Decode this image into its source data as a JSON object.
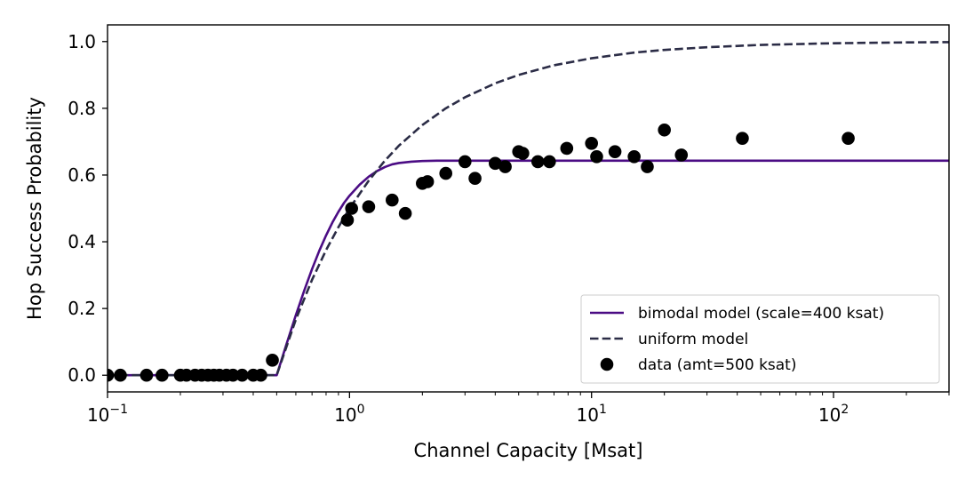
{
  "chart_data": {
    "type": "scatter",
    "title": "",
    "xlabel": "Channel Capacity [Msat]",
    "ylabel": "Hop Success Probability",
    "xscale": "log",
    "xlim": [
      0.1,
      300
    ],
    "ylim": [
      -0.05,
      1.05
    ],
    "x_ticks": [
      {
        "value": 0.1,
        "base": "10",
        "exp": "−1"
      },
      {
        "value": 1,
        "base": "10",
        "exp": "0"
      },
      {
        "value": 10,
        "base": "10",
        "exp": "1"
      },
      {
        "value": 100,
        "base": "10",
        "exp": "2"
      }
    ],
    "y_ticks": [
      {
        "value": 0.0,
        "label": "0.0"
      },
      {
        "value": 0.2,
        "label": "0.2"
      },
      {
        "value": 0.4,
        "label": "0.4"
      },
      {
        "value": 0.6,
        "label": "0.6"
      },
      {
        "value": 0.8,
        "label": "0.8"
      },
      {
        "value": 1.0,
        "label": "1.0"
      }
    ],
    "grid": false,
    "legend_position": "bottom-right",
    "series": [
      {
        "name": "bimodal model (scale=400 ksat)",
        "kind": "line",
        "color": "#4b0c84",
        "dash": "solid",
        "x": [
          0.1,
          0.2,
          0.3,
          0.4,
          0.5,
          0.55,
          0.6,
          0.65,
          0.7,
          0.75,
          0.8,
          0.85,
          0.9,
          0.95,
          1.0,
          1.1,
          1.2,
          1.3,
          1.4,
          1.5,
          1.6,
          1.8,
          2.0,
          2.3,
          2.6,
          3.0,
          5.0,
          10,
          30,
          100,
          300
        ],
        "y": [
          0.0,
          0.0,
          0.0,
          0.0,
          0.0,
          0.095,
          0.18,
          0.254,
          0.318,
          0.373,
          0.419,
          0.458,
          0.49,
          0.517,
          0.538,
          0.571,
          0.595,
          0.612,
          0.624,
          0.632,
          0.636,
          0.64,
          0.642,
          0.643,
          0.643,
          0.643,
          0.643,
          0.643,
          0.643,
          0.643,
          0.643
        ]
      },
      {
        "name": "uniform model",
        "kind": "line",
        "color": "#2b2c46",
        "dash": "dashed",
        "x": [
          0.1,
          0.2,
          0.3,
          0.4,
          0.5,
          0.6,
          0.7,
          0.8,
          0.9,
          1.0,
          1.2,
          1.4,
          1.6,
          2.0,
          2.5,
          3.0,
          4.0,
          5.0,
          7.0,
          10,
          15,
          20,
          30,
          50,
          100,
          200,
          300
        ],
        "y": [
          0.0,
          0.0,
          0.0,
          0.0,
          0.0,
          0.167,
          0.286,
          0.375,
          0.444,
          0.5,
          0.583,
          0.643,
          0.688,
          0.75,
          0.8,
          0.833,
          0.875,
          0.9,
          0.929,
          0.95,
          0.967,
          0.975,
          0.983,
          0.99,
          0.995,
          0.9975,
          0.9983
        ]
      },
      {
        "name": "data (amt=500 ksat)",
        "kind": "scatter",
        "color": "#000000",
        "x": [
          0.1,
          0.113,
          0.145,
          0.168,
          0.2,
          0.212,
          0.23,
          0.245,
          0.26,
          0.275,
          0.29,
          0.31,
          0.33,
          0.36,
          0.4,
          0.43,
          0.48,
          0.98,
          1.02,
          1.2,
          1.5,
          1.7,
          2.0,
          2.1,
          2.5,
          3.0,
          3.3,
          4.0,
          4.4,
          5.0,
          5.2,
          6.0,
          6.7,
          7.9,
          10.0,
          10.5,
          12.5,
          15.0,
          17.0,
          20.0,
          23.5,
          42.0,
          115.0
        ],
        "y": [
          0.0,
          0.0,
          0.0,
          0.0,
          0.0,
          0.0,
          0.0,
          0.0,
          0.0,
          0.0,
          0.0,
          0.0,
          0.0,
          0.0,
          0.0,
          0.0,
          0.045,
          0.465,
          0.5,
          0.505,
          0.525,
          0.485,
          0.575,
          0.58,
          0.605,
          0.64,
          0.59,
          0.635,
          0.625,
          0.67,
          0.665,
          0.64,
          0.64,
          0.68,
          0.695,
          0.655,
          0.67,
          0.655,
          0.625,
          0.735,
          0.66,
          0.71,
          0.71
        ]
      }
    ]
  }
}
